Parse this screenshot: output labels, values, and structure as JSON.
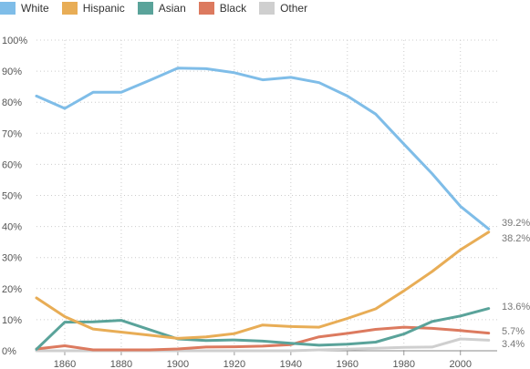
{
  "chart_data": {
    "type": "line",
    "x": [
      1850,
      1860,
      1870,
      1880,
      1890,
      1900,
      1910,
      1920,
      1930,
      1940,
      1950,
      1960,
      1970,
      1980,
      1990,
      2000,
      2010
    ],
    "series": [
      {
        "name": "White",
        "color": "#7fbde8",
        "values": [
          82,
          78,
          83.2,
          83.2,
          87,
          91,
          90.8,
          89.5,
          87.2,
          88,
          86.3,
          82,
          76.2,
          66.5,
          57,
          46.5,
          39.2
        ]
      },
      {
        "name": "Hispanic",
        "color": "#e8ad56",
        "values": [
          17,
          11,
          7,
          6,
          5,
          4,
          4.5,
          5.5,
          8.3,
          7.8,
          7.6,
          10.4,
          13.5,
          19.3,
          25.5,
          32.5,
          38.2
        ]
      },
      {
        "name": "Asian",
        "color": "#5aa39a",
        "values": [
          0.5,
          9.2,
          9.3,
          9.8,
          6.8,
          3.8,
          3.3,
          3.5,
          3.1,
          2.4,
          1.8,
          2.1,
          2.8,
          5.4,
          9.4,
          11.2,
          13.6
        ]
      },
      {
        "name": "Black",
        "color": "#dc7a5f",
        "values": [
          0.6,
          1.6,
          0.3,
          0.3,
          0.3,
          0.6,
          1.2,
          1.3,
          1.5,
          2,
          4.5,
          5.6,
          6.9,
          7.6,
          7.2,
          6.5,
          5.7
        ]
      },
      {
        "name": "Other",
        "color": "#cfcfcf",
        "values": [
          0,
          0,
          0,
          0,
          0,
          0,
          0,
          0,
          0,
          0,
          0.3,
          0.5,
          0.8,
          1.1,
          1.2,
          3.8,
          3.4
        ]
      }
    ],
    "end_labels": [
      "39.2%",
      "38.2%",
      "13.6%",
      "5.7%",
      "3.4%"
    ],
    "y_ticks": [
      0,
      10,
      20,
      30,
      40,
      50,
      60,
      70,
      80,
      90,
      100
    ],
    "y_tick_labels": [
      "0%",
      "10%",
      "20%",
      "30%",
      "40%",
      "50%",
      "60%",
      "70%",
      "80%",
      "90%",
      "100%"
    ],
    "x_ticks": [
      1860,
      1880,
      1900,
      1920,
      1940,
      1960,
      1980,
      2000
    ],
    "x_tick_labels": [
      "1860",
      "1880",
      "1900",
      "1920",
      "1940",
      "1960",
      "1980",
      "2000"
    ],
    "xlim": [
      1850,
      2013
    ],
    "ylim": [
      0,
      100
    ],
    "grid": true,
    "legend_position": "top-left",
    "title": "",
    "xlabel": "",
    "ylabel": ""
  }
}
